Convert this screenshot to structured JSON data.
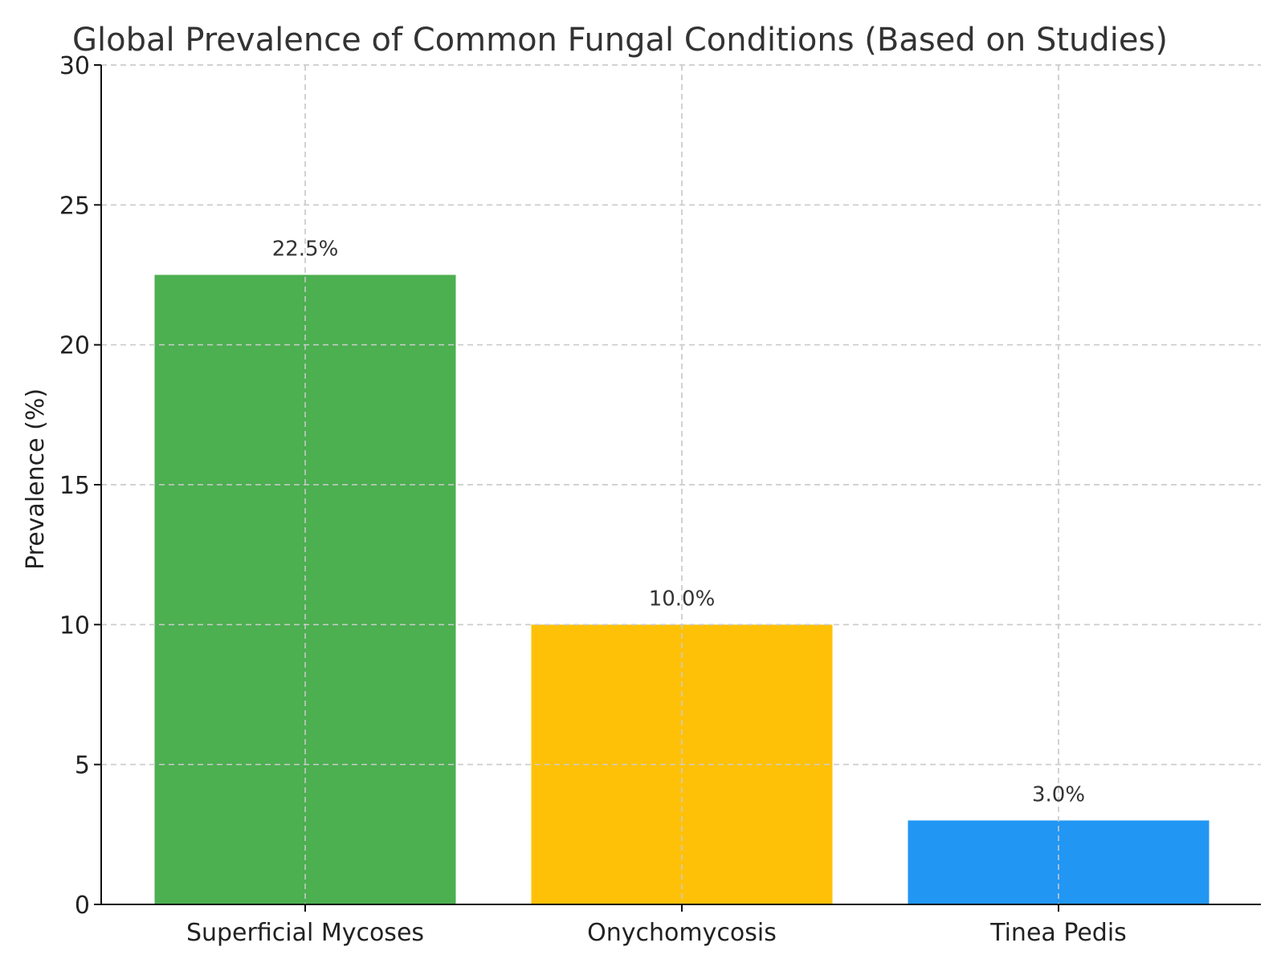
{
  "chart_data": {
    "type": "bar",
    "title": "Global Prevalence of Common Fungal Conditions (Based on Studies)",
    "xlabel": "",
    "ylabel": "Prevalence (%)",
    "categories": [
      "Superficial Mycoses",
      "Onychomycosis",
      "Tinea Pedis"
    ],
    "values": [
      22.5,
      10.0,
      3.0
    ],
    "value_labels": [
      "22.5%",
      "10.0%",
      "3.0%"
    ],
    "colors": [
      "#4caf50",
      "#ffc107",
      "#2196f3"
    ],
    "ylim": [
      0,
      30
    ],
    "yticks": [
      0,
      5,
      10,
      15,
      20,
      25,
      30
    ],
    "grid": true,
    "legend": "none"
  }
}
